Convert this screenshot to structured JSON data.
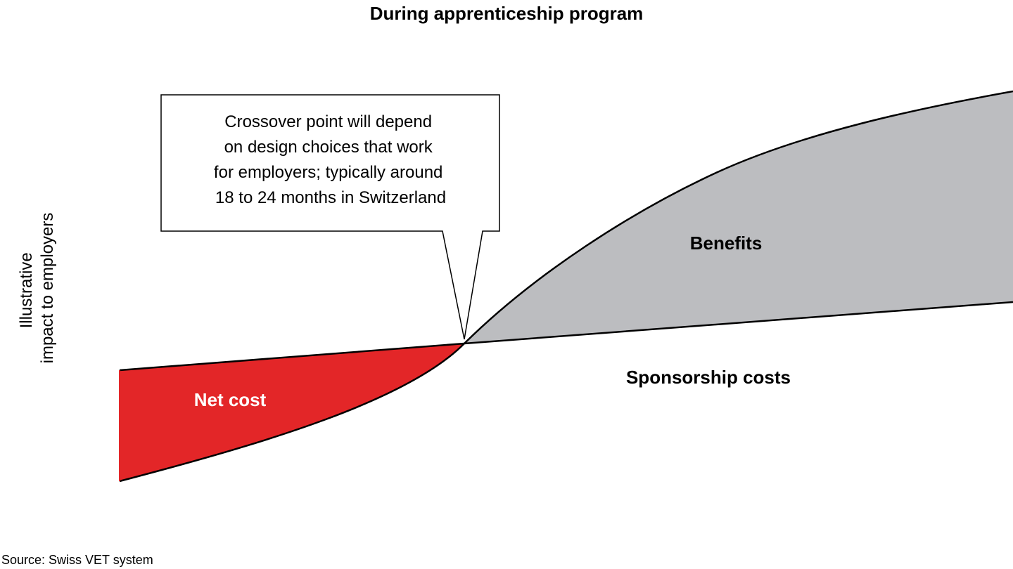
{
  "chart_data": {
    "type": "area",
    "title": "During apprenticeship program",
    "ylabel": "Illustrative impact to employers",
    "ylabel_lines": [
      "Illustrative",
      "impact to employers"
    ],
    "xlabel": "",
    "illustrative": true,
    "series": [
      {
        "name": "Sponsorship costs",
        "role": "cost line",
        "shape": "gently rising straight line"
      },
      {
        "name": "Benefits",
        "role": "benefit curve",
        "shape": "concave rising curve, starts below costs and crosses them"
      }
    ],
    "regions": [
      {
        "label": "Net cost",
        "between": "benefits below sponsorship costs (before crossover)",
        "color": "#e32628"
      },
      {
        "label": "Benefits",
        "between": "benefits above sponsorship costs (after crossover)",
        "color": "#bcbdc0"
      }
    ],
    "annotations": [
      {
        "text_lines": [
          "Crossover point will depend",
          "on design choices that work",
          "for employers; typically around",
          "18 to 24 months in Switzerland"
        ],
        "points_to": "crossover"
      }
    ],
    "labels": {
      "net_cost": "Net cost",
      "benefits": "Benefits",
      "sponsorship_costs": "Sponsorship costs"
    },
    "grid": false,
    "legend": "none"
  },
  "colors": {
    "net_cost": "#e32628",
    "benefits": "#bcbdc0",
    "line": "#000000"
  },
  "source": "Source: Swiss VET system"
}
